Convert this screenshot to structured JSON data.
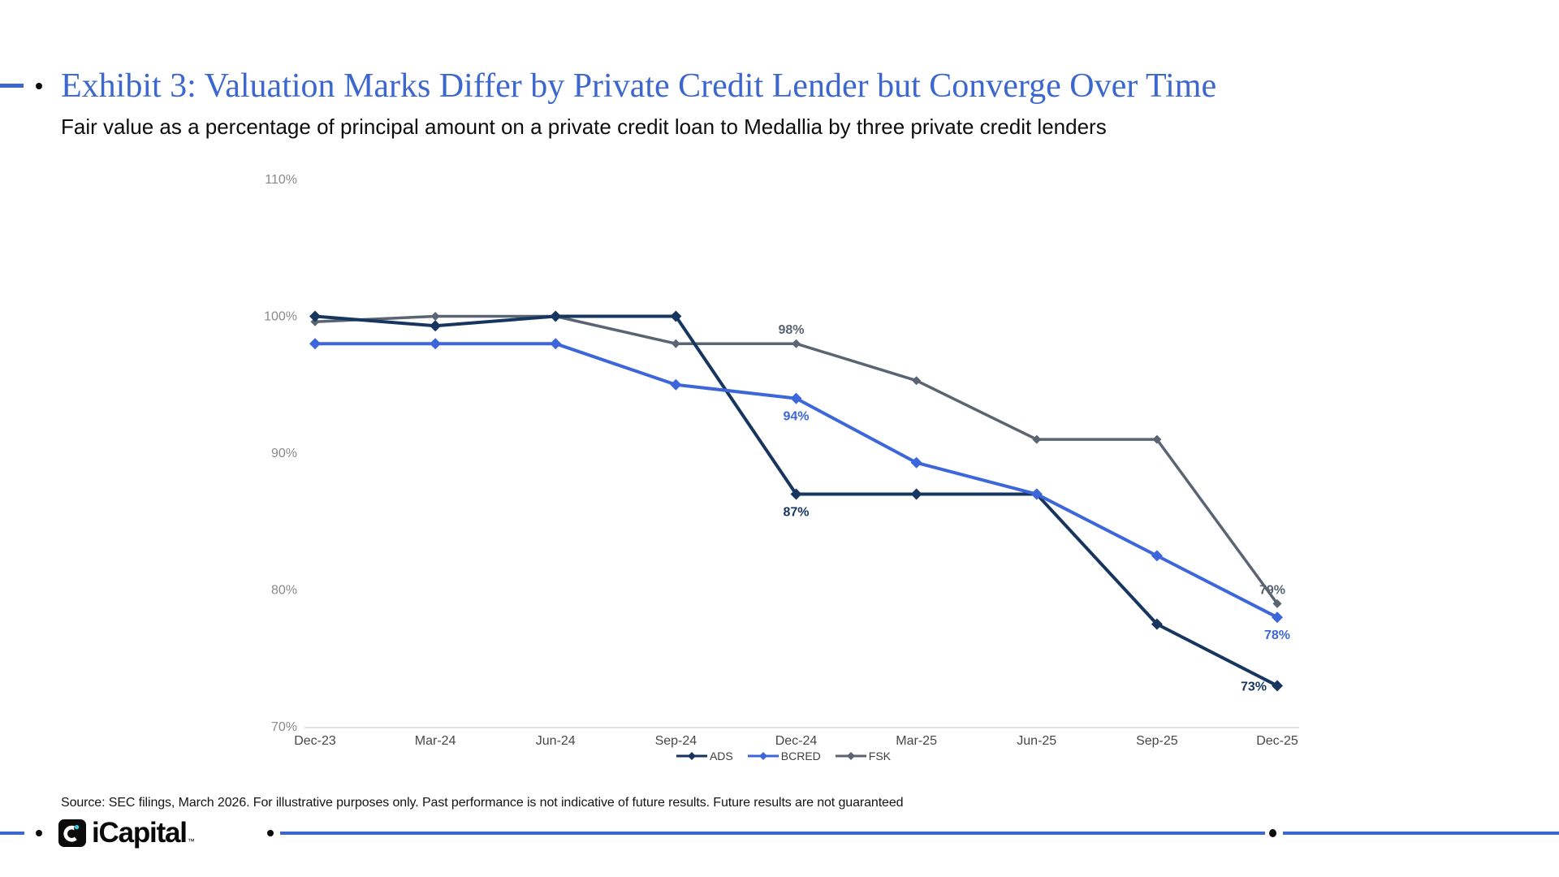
{
  "header": {
    "title": "Exhibit 3: Valuation Marks Differ by Private Credit Lender but Converge Over Time",
    "subtitle": "Fair value as a percentage of principal amount on a private credit loan to Medallia by three private credit lenders"
  },
  "colors": {
    "accent_blue": "#3C67CE",
    "navy": "#17365F",
    "bright_blue": "#3D66DB",
    "slate_gray": "#5A6472",
    "axis_line": "#D8D8D8",
    "ytick_gray": "#8A8A8A",
    "xtick_gray": "#474747",
    "logo_black": "#0B0B0B",
    "logo_cyan": "#3EC9E0"
  },
  "chart_data": {
    "type": "line",
    "title": "",
    "xlabel": "",
    "ylabel": "",
    "ylim": [
      70,
      110
    ],
    "grid": false,
    "legend_position": "bottom",
    "categories": [
      "Dec-23",
      "Mar-24",
      "Jun-24",
      "Sep-24",
      "Dec-24",
      "Mar-25",
      "Jun-25",
      "Sep-25",
      "Dec-25"
    ],
    "series": [
      {
        "name": "ADS",
        "color": "#17365F",
        "marker": "diamond",
        "values": [
          100,
          99.3,
          100,
          100,
          87,
          87,
          87,
          77.5,
          73
        ]
      },
      {
        "name": "BCRED",
        "color": "#3D66DB",
        "marker": "diamond",
        "values": [
          98,
          98,
          98,
          95,
          94,
          89.3,
          87,
          82.5,
          78
        ]
      },
      {
        "name": "FSK",
        "color": "#5A6472",
        "marker": "diamond",
        "values": [
          99.6,
          100,
          100,
          98,
          98,
          95.3,
          91,
          91,
          79
        ]
      }
    ],
    "yticks": [
      {
        "value": 110,
        "label": "110%"
      },
      {
        "value": 100,
        "label": "100%"
      },
      {
        "value": 90,
        "label": "90%"
      },
      {
        "value": 80,
        "label": "80%"
      },
      {
        "value": 70,
        "label": "70%"
      }
    ],
    "annotations": [
      {
        "series": "FSK",
        "index": 4,
        "text": "98%",
        "position": "above"
      },
      {
        "series": "BCRED",
        "index": 4,
        "text": "94%",
        "position": "below"
      },
      {
        "series": "ADS",
        "index": 4,
        "text": "87%",
        "position": "below"
      },
      {
        "series": "FSK",
        "index": 8,
        "text": "79%",
        "position": "above"
      },
      {
        "series": "BCRED",
        "index": 8,
        "text": "78%",
        "position": "below"
      },
      {
        "series": "ADS",
        "index": 8,
        "text": "73%",
        "position": "left"
      }
    ]
  },
  "footer": {
    "source_note": "Source: SEC filings, March 2026. For illustrative purposes only. Past performance is not indicative of future results. Future results are not guaranteed",
    "logo_text": "iCapital",
    "trademark": "™"
  }
}
